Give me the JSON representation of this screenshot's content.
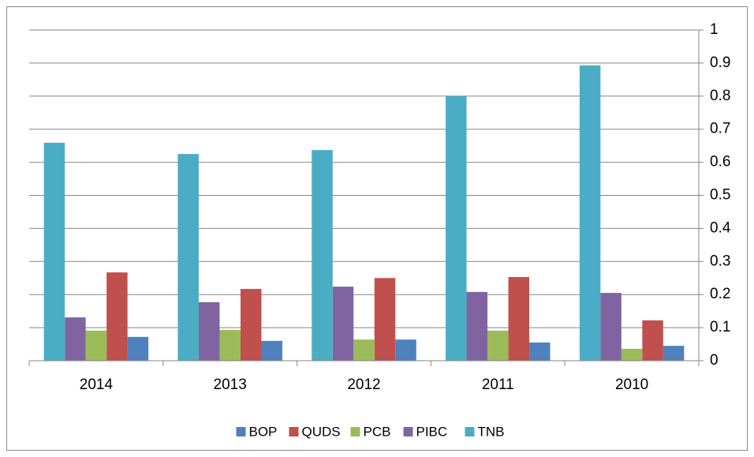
{
  "chart_data": {
    "type": "bar",
    "categories": [
      "2014",
      "2013",
      "2012",
      "2011",
      "2010"
    ],
    "series": [
      {
        "name": "BOP",
        "color": "#4f81bd",
        "values": [
          0.072,
          0.06,
          0.064,
          0.055,
          0.045
        ]
      },
      {
        "name": "QUDS",
        "color": "#c0504d",
        "values": [
          0.267,
          0.217,
          0.25,
          0.253,
          0.122
        ]
      },
      {
        "name": "PCB",
        "color": "#9bbb59",
        "values": [
          0.091,
          0.093,
          0.064,
          0.091,
          0.036
        ]
      },
      {
        "name": "PIBC",
        "color": "#8064a2",
        "values": [
          0.131,
          0.177,
          0.224,
          0.208,
          0.205
        ]
      },
      {
        "name": "TNB",
        "color": "#4bacc6",
        "values": [
          0.659,
          0.625,
          0.637,
          0.8,
          0.893
        ]
      }
    ],
    "ylim": [
      0,
      1
    ],
    "yticks": [
      0,
      0.1,
      0.2,
      0.3,
      0.4,
      0.5,
      0.6,
      0.7,
      0.8,
      0.9,
      1
    ],
    "grid": true,
    "legend": "bottom"
  }
}
